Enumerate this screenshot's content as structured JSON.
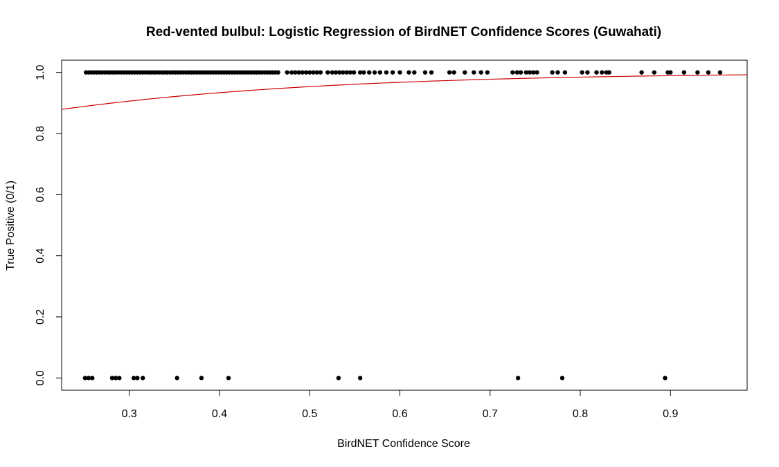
{
  "chart_data": {
    "type": "scatter",
    "title": "Red-vented bulbul: Logistic Regression of BirdNET Confidence Scores (Guwahati)",
    "xlabel": "BirdNET Confidence Score",
    "ylabel": "True Positive (0/1)",
    "xlim": [
      0.225,
      0.985
    ],
    "ylim": [
      -0.04,
      1.04
    ],
    "x_ticks": [
      "0.3",
      "0.4",
      "0.5",
      "0.6",
      "0.7",
      "0.8",
      "0.9"
    ],
    "y_ticks": [
      "0.0",
      "0.2",
      "0.4",
      "0.6",
      "0.8",
      "1.0"
    ],
    "grid": false,
    "colors": {
      "points": "#000000",
      "fit_line": "#cc0000"
    },
    "series": [
      {
        "y": 1,
        "x": [
          0.252,
          0.255,
          0.258,
          0.261,
          0.264,
          0.267,
          0.27,
          0.273,
          0.276,
          0.279,
          0.282,
          0.285,
          0.288,
          0.291,
          0.294,
          0.297,
          0.3,
          0.303,
          0.306,
          0.309,
          0.312,
          0.315,
          0.318,
          0.321,
          0.324,
          0.327,
          0.33,
          0.333,
          0.336,
          0.339,
          0.342,
          0.345,
          0.348,
          0.351,
          0.354,
          0.357,
          0.36,
          0.363,
          0.366,
          0.369,
          0.372,
          0.375,
          0.378,
          0.381,
          0.384,
          0.387,
          0.39,
          0.393,
          0.396,
          0.399,
          0.402,
          0.405,
          0.408,
          0.411,
          0.414,
          0.417,
          0.42,
          0.423,
          0.426,
          0.429,
          0.432,
          0.435,
          0.438,
          0.441,
          0.444,
          0.447,
          0.45,
          0.453,
          0.456,
          0.459,
          0.462,
          0.465,
          0.475,
          0.48,
          0.484,
          0.488,
          0.492,
          0.496,
          0.5,
          0.504,
          0.508,
          0.512,
          0.52,
          0.525,
          0.529,
          0.533,
          0.537,
          0.541,
          0.545,
          0.549,
          0.556,
          0.56,
          0.566,
          0.572,
          0.578,
          0.585,
          0.592,
          0.6,
          0.61,
          0.616,
          0.628,
          0.635,
          0.655,
          0.66,
          0.672,
          0.682,
          0.69,
          0.697,
          0.725,
          0.73,
          0.734,
          0.74,
          0.744,
          0.748,
          0.752,
          0.769,
          0.775,
          0.783,
          0.802,
          0.808,
          0.818,
          0.824,
          0.829,
          0.832,
          0.868,
          0.882,
          0.897,
          0.9,
          0.915,
          0.93,
          0.942,
          0.955
        ]
      },
      {
        "y": 0,
        "x": [
          0.251,
          0.255,
          0.259,
          0.281,
          0.285,
          0.289,
          0.305,
          0.309,
          0.315,
          0.353,
          0.38,
          0.41,
          0.532,
          0.556,
          0.731,
          0.78,
          0.894
        ]
      }
    ],
    "fit": {
      "type": "logistic",
      "intercept": 1.134,
      "slope": 3.775
    }
  }
}
